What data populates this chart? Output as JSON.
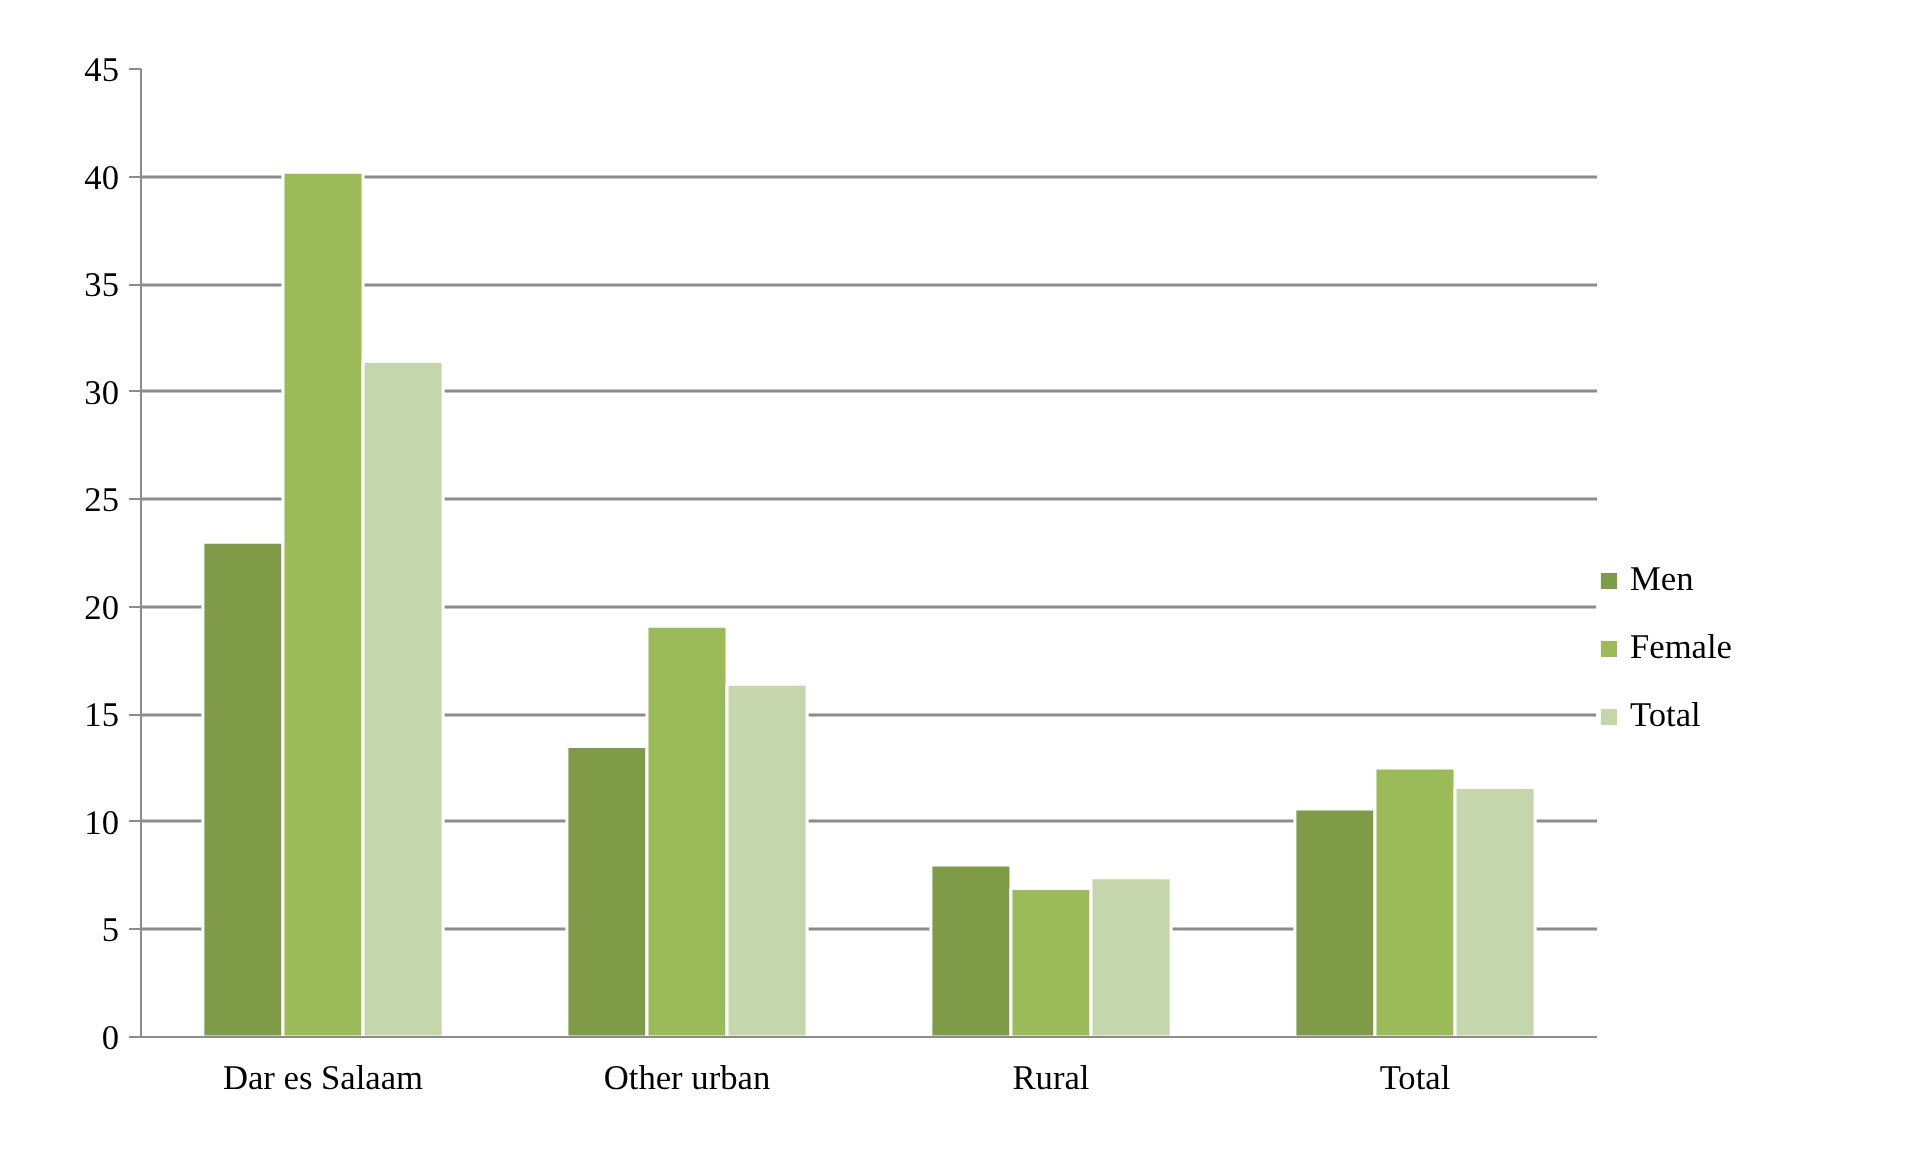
{
  "chart_data": {
    "type": "bar",
    "categories": [
      "Dar es Salaam",
      "Other urban",
      "Rural",
      "Total"
    ],
    "series": [
      {
        "name": "Men",
        "color": "#7f9b48",
        "values": [
          23.0,
          13.5,
          8.0,
          10.6
        ]
      },
      {
        "name": "Female",
        "color": "#9bbb59",
        "values": [
          40.2,
          19.1,
          6.9,
          12.5
        ]
      },
      {
        "name": "Total",
        "color": "#c6d6ac",
        "values": [
          31.4,
          16.4,
          7.4,
          11.6
        ]
      }
    ],
    "ylim": [
      0,
      45
    ],
    "yticks": [
      0,
      5,
      10,
      15,
      20,
      25,
      30,
      35,
      40,
      45
    ],
    "grid": "y",
    "legend": "right"
  }
}
